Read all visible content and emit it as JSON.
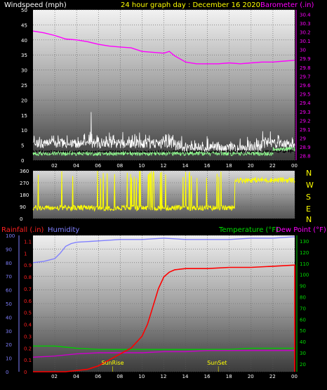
{
  "header": {
    "title": "24 hour graph day : December 16 2020",
    "left_label": "Windspeed (mph)",
    "right_label": "Barometer (.in)"
  },
  "colors": {
    "wind": "#ffffff",
    "gust_avg": "#00ff00",
    "barometer": "#ff00ff",
    "direction": "#ffff00",
    "rain": "#ff0000",
    "humidity": "#8080ff",
    "temperature": "#00cc00",
    "dewpoint": "#cc00cc",
    "title": "#ffff00"
  },
  "compass": [
    "N",
    "W",
    "S",
    "E",
    "N"
  ],
  "bottom_labels": {
    "rain": "Rainfall (.in)",
    "humidity": "Humidity",
    "temperature": "Temperature (°F)",
    "dewpoint": "Dew Point (°F)",
    "sunrise": "SunRise",
    "sunset": "SunSet"
  },
  "chart_data": [
    {
      "type": "line",
      "name": "wind_barometer",
      "x_ticks": [
        "02",
        "04",
        "06",
        "08",
        "10",
        "12",
        "14",
        "16",
        "18",
        "20",
        "22",
        "00"
      ],
      "y_left_ticks": [
        "0",
        "5",
        "10",
        "15",
        "20",
        "25",
        "30",
        "35",
        "40",
        "45",
        "50"
      ],
      "y_left_range": [
        0,
        50
      ],
      "y_right_ticks": [
        "28.8",
        "28.9",
        "29",
        "29.1",
        "29.2",
        "29.3",
        "29.4",
        "29.5",
        "29.6",
        "29.7",
        "29.8",
        "29.9",
        "30",
        "30.1",
        "30.2",
        "30.3",
        "30.4"
      ],
      "y_right_range": [
        28.75,
        30.45
      ],
      "series": [
        {
          "name": "Barometer",
          "x": [
            0,
            1,
            2,
            3,
            4,
            5,
            6,
            7,
            8,
            9,
            10,
            11,
            12,
            12.5,
            13,
            14,
            15,
            16,
            17,
            18,
            19,
            20,
            21,
            22,
            23,
            24
          ],
          "y": [
            30.21,
            30.19,
            30.16,
            30.12,
            30.11,
            30.09,
            30.06,
            30.04,
            30.03,
            30.02,
            29.98,
            29.97,
            29.96,
            29.98,
            29.93,
            29.86,
            29.84,
            29.84,
            29.84,
            29.85,
            29.84,
            29.85,
            29.86,
            29.86,
            29.87,
            29.88
          ]
        }
      ]
    },
    {
      "type": "line",
      "name": "wind_direction",
      "y_ticks": [
        "0",
        "90",
        "180",
        "270",
        "360"
      ],
      "y_range": [
        0,
        360
      ]
    },
    {
      "type": "line",
      "name": "rain_humidity_temp",
      "y_left_ticks": [
        "0",
        "10",
        "20",
        "30",
        "40",
        "50",
        "60",
        "70",
        "80",
        "90",
        "100"
      ],
      "y_left_range": [
        0,
        100
      ],
      "y_rain_ticks": [
        "0",
        "0.1",
        "0.2",
        "0.3",
        "0.4",
        "0.5",
        "0.6",
        "0.7",
        "0.8",
        "0.9",
        "1",
        "1.1"
      ],
      "y_right_ticks": [
        "20",
        "30",
        "40",
        "50",
        "60",
        "70",
        "80",
        "90",
        "100",
        "110",
        "120",
        "130"
      ],
      "y_right_range": [
        13,
        135
      ],
      "series": [
        {
          "name": "Rainfall",
          "x": [
            0,
            3,
            5,
            6,
            7,
            8,
            9,
            10,
            10.5,
            11,
            11.5,
            12,
            12.5,
            13,
            14,
            16,
            18,
            20,
            22,
            24
          ],
          "y": [
            0,
            0,
            0.02,
            0.05,
            0.1,
            0.15,
            0.2,
            0.3,
            0.4,
            0.55,
            0.7,
            0.8,
            0.84,
            0.86,
            0.87,
            0.87,
            0.88,
            0.88,
            0.89,
            0.9
          ]
        },
        {
          "name": "Humidity",
          "x": [
            0,
            1,
            2,
            2.5,
            3,
            3.5,
            4,
            6,
            8,
            10,
            12,
            14,
            16,
            18,
            20,
            22,
            24
          ],
          "y": [
            80,
            81,
            83,
            87,
            92,
            94,
            95,
            96,
            97,
            97,
            98,
            97,
            97,
            97,
            98,
            98,
            99
          ]
        },
        {
          "name": "Temperature",
          "x": [
            0,
            2,
            3,
            4,
            6,
            8,
            10,
            12,
            14,
            16,
            18,
            20,
            22,
            24
          ],
          "y": [
            36,
            36,
            35,
            34,
            33,
            33,
            33,
            33,
            33,
            33,
            33,
            34,
            34,
            34
          ]
        },
        {
          "name": "DewPoint",
          "x": [
            0,
            2,
            4,
            6,
            8,
            10,
            12,
            14,
            16,
            18,
            20,
            22,
            24
          ],
          "y": [
            26,
            27,
            29,
            30,
            30,
            30,
            31,
            31,
            32,
            32,
            32,
            32,
            32
          ]
        }
      ],
      "markers": [
        {
          "label": "SunRise",
          "x": 7.3
        },
        {
          "label": "SunSet",
          "x": 17
        }
      ]
    }
  ]
}
